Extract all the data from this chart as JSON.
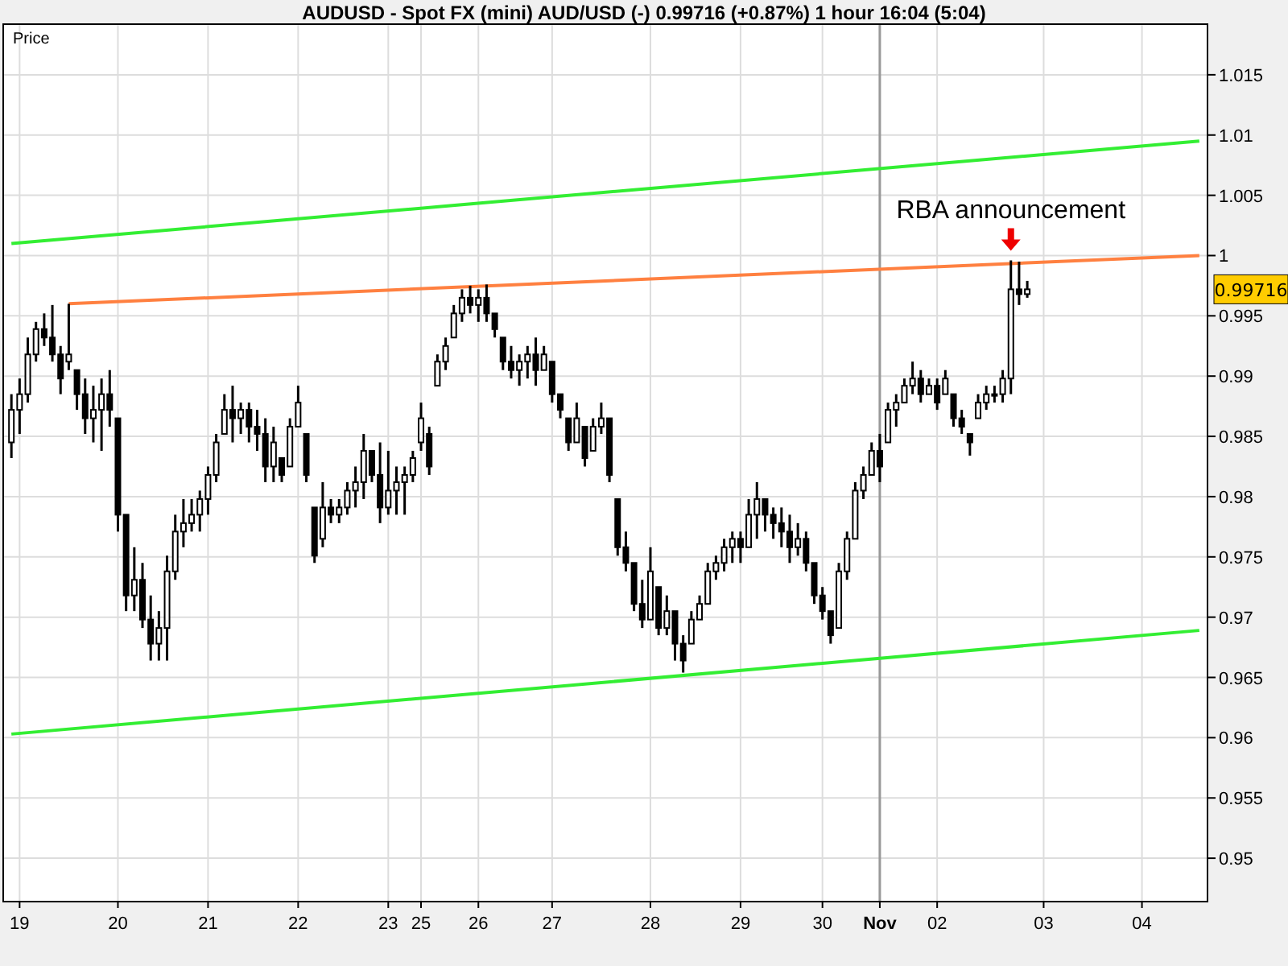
{
  "chart_data": {
    "type": "candlestick",
    "title": "AUDUSD - Spot FX (mini) AUD/USD (-)    0.99716 (+0.87%)    1 hour  16:04 (5:04)",
    "ylabel": "Price",
    "categories": [
      null,
      "19",
      null,
      null,
      null,
      null,
      null,
      null,
      null,
      null,
      null,
      null,
      null,
      "20",
      null,
      null,
      null,
      null,
      null,
      null,
      null,
      null,
      null,
      null,
      "21",
      null,
      null,
      null,
      null,
      null,
      null,
      null,
      null,
      null,
      null,
      "22",
      null,
      null,
      null,
      null,
      null,
      null,
      null,
      null,
      null,
      null,
      "23",
      null,
      null,
      null,
      "25",
      null,
      null,
      null,
      null,
      null,
      null,
      "26",
      null,
      null,
      null,
      null,
      null,
      null,
      null,
      null,
      "27",
      null,
      null,
      null,
      null,
      null,
      null,
      null,
      null,
      null,
      null,
      null,
      "28",
      null,
      null,
      null,
      null,
      null,
      null,
      null,
      null,
      null,
      null,
      "29",
      null,
      null,
      null,
      null,
      null,
      null,
      null,
      null,
      null,
      "30",
      null,
      null,
      null,
      null,
      null,
      null,
      "Nov",
      null,
      null,
      null,
      null,
      null,
      null,
      "02",
      null,
      null,
      null,
      null,
      null,
      null,
      null,
      null,
      null,
      null,
      null,
      null,
      "03",
      null,
      null,
      null,
      null,
      null,
      null,
      null,
      null,
      null,
      null,
      null,
      "04",
      null,
      null,
      null,
      null,
      null,
      null,
      null
    ],
    "ohlc": [
      [
        0.9845,
        0.9885,
        0.9832,
        0.9872
      ],
      [
        0.9872,
        0.9898,
        0.9852,
        0.9885
      ],
      [
        0.9885,
        0.9932,
        0.9878,
        0.9918
      ],
      [
        0.9918,
        0.9945,
        0.9912,
        0.9939
      ],
      [
        0.9939,
        0.9952,
        0.9925,
        0.9932
      ],
      [
        0.9932,
        0.9959,
        0.9912,
        0.9918
      ],
      [
        0.9918,
        0.9925,
        0.9885,
        0.9898
      ],
      [
        0.9912,
        0.996,
        0.9905,
        0.9918
      ],
      [
        0.9905,
        0.9905,
        0.9872,
        0.9885
      ],
      [
        0.9885,
        0.9898,
        0.9852,
        0.9865
      ],
      [
        0.9865,
        0.9892,
        0.9845,
        0.9872
      ],
      [
        0.9872,
        0.9898,
        0.9838,
        0.9885
      ],
      [
        0.9885,
        0.9905,
        0.9858,
        0.9872
      ],
      [
        0.9865,
        0.9865,
        0.9771,
        0.9785
      ],
      [
        0.9785,
        0.9785,
        0.9705,
        0.9718
      ],
      [
        0.9718,
        0.9758,
        0.9705,
        0.9731
      ],
      [
        0.9731,
        0.9745,
        0.9691,
        0.9698
      ],
      [
        0.9698,
        0.9718,
        0.9664,
        0.9678
      ],
      [
        0.9678,
        0.9705,
        0.9664,
        0.9691
      ],
      [
        0.9691,
        0.9751,
        0.9664,
        0.9738
      ],
      [
        0.9738,
        0.9785,
        0.9731,
        0.9771
      ],
      [
        0.9771,
        0.9798,
        0.9758,
        0.9778
      ],
      [
        0.9778,
        0.9798,
        0.9771,
        0.9785
      ],
      [
        0.9785,
        0.9805,
        0.9771,
        0.9798
      ],
      [
        0.9798,
        0.9825,
        0.9785,
        0.9818
      ],
      [
        0.9818,
        0.9852,
        0.9812,
        0.9845
      ],
      [
        0.9852,
        0.9885,
        0.9852,
        0.9872
      ],
      [
        0.9872,
        0.9892,
        0.9845,
        0.9865
      ],
      [
        0.9865,
        0.9878,
        0.9852,
        0.9872
      ],
      [
        0.9872,
        0.9878,
        0.9845,
        0.9858
      ],
      [
        0.9858,
        0.9872,
        0.9838,
        0.9852
      ],
      [
        0.9852,
        0.9865,
        0.9812,
        0.9825
      ],
      [
        0.9825,
        0.9858,
        0.9812,
        0.9845
      ],
      [
        0.9832,
        0.9832,
        0.9812,
        0.9818
      ],
      [
        0.9825,
        0.9865,
        0.9825,
        0.9858
      ],
      [
        0.9858,
        0.9892,
        0.9858,
        0.9878
      ],
      [
        0.9852,
        0.9852,
        0.9812,
        0.9818
      ],
      [
        0.9791,
        0.9791,
        0.9745,
        0.9751
      ],
      [
        0.9765,
        0.9812,
        0.9758,
        0.9791
      ],
      [
        0.9791,
        0.9798,
        0.9778,
        0.9785
      ],
      [
        0.9785,
        0.9798,
        0.9778,
        0.9791
      ],
      [
        0.9791,
        0.9812,
        0.9785,
        0.9805
      ],
      [
        0.9805,
        0.9825,
        0.9791,
        0.9812
      ],
      [
        0.9812,
        0.9852,
        0.9798,
        0.9838
      ],
      [
        0.9838,
        0.9838,
        0.9812,
        0.9818
      ],
      [
        0.9818,
        0.9845,
        0.9778,
        0.9791
      ],
      [
        0.9791,
        0.9838,
        0.9785,
        0.9805
      ],
      [
        0.9805,
        0.9825,
        0.9785,
        0.9812
      ],
      [
        0.9812,
        0.9825,
        0.9785,
        0.9818
      ],
      [
        0.9818,
        0.9838,
        0.9812,
        0.9832
      ],
      [
        0.9845,
        0.9878,
        0.9838,
        0.9865
      ],
      [
        0.9852,
        0.9858,
        0.9818,
        0.9825
      ],
      [
        0.9892,
        0.9918,
        0.9892,
        0.9912
      ],
      [
        0.9912,
        0.9932,
        0.9905,
        0.9925
      ],
      [
        0.9932,
        0.9959,
        0.9932,
        0.9952
      ],
      [
        0.9952,
        0.9972,
        0.9945,
        0.9965
      ],
      [
        0.9965,
        0.9975,
        0.9952,
        0.9959
      ],
      [
        0.9959,
        0.9972,
        0.9945,
        0.9965
      ],
      [
        0.9965,
        0.9976,
        0.9945,
        0.9952
      ],
      [
        0.9952,
        0.9952,
        0.9932,
        0.9939
      ],
      [
        0.9932,
        0.9932,
        0.9905,
        0.9912
      ],
      [
        0.9912,
        0.9925,
        0.9898,
        0.9905
      ],
      [
        0.9905,
        0.9918,
        0.9892,
        0.9912
      ],
      [
        0.9912,
        0.9925,
        0.9898,
        0.9918
      ],
      [
        0.9918,
        0.9932,
        0.9892,
        0.9905
      ],
      [
        0.9905,
        0.9925,
        0.9905,
        0.9918
      ],
      [
        0.9912,
        0.9912,
        0.9878,
        0.9885
      ],
      [
        0.9885,
        0.9885,
        0.9865,
        0.9872
      ],
      [
        0.9865,
        0.9865,
        0.9838,
        0.9845
      ],
      [
        0.9845,
        0.9878,
        0.9845,
        0.9865
      ],
      [
        0.9858,
        0.9858,
        0.9825,
        0.9832
      ],
      [
        0.9838,
        0.9865,
        0.9838,
        0.9858
      ],
      [
        0.9858,
        0.9878,
        0.9852,
        0.9865
      ],
      [
        0.9865,
        0.9865,
        0.9812,
        0.9818
      ],
      [
        0.9798,
        0.9798,
        0.9751,
        0.9758
      ],
      [
        0.9758,
        0.9771,
        0.9738,
        0.9745
      ],
      [
        0.9745,
        0.9745,
        0.9705,
        0.9711
      ],
      [
        0.9711,
        0.9731,
        0.9691,
        0.9698
      ],
      [
        0.9698,
        0.9758,
        0.9698,
        0.9738
      ],
      [
        0.9725,
        0.9725,
        0.9685,
        0.9691
      ],
      [
        0.9691,
        0.9718,
        0.9685,
        0.9705
      ],
      [
        0.9705,
        0.9705,
        0.9664,
        0.9678
      ],
      [
        0.9678,
        0.9685,
        0.9654,
        0.9664
      ],
      [
        0.9678,
        0.9705,
        0.9678,
        0.9698
      ],
      [
        0.9698,
        0.9718,
        0.9698,
        0.9711
      ],
      [
        0.9711,
        0.9745,
        0.9711,
        0.9738
      ],
      [
        0.9738,
        0.9751,
        0.9731,
        0.9745
      ],
      [
        0.9745,
        0.9765,
        0.9738,
        0.9758
      ],
      [
        0.9758,
        0.9771,
        0.9745,
        0.9765
      ],
      [
        0.9765,
        0.9771,
        0.9745,
        0.9758
      ],
      [
        0.9758,
        0.9798,
        0.9758,
        0.9785
      ],
      [
        0.9785,
        0.9812,
        0.9765,
        0.9798
      ],
      [
        0.9798,
        0.9798,
        0.9771,
        0.9785
      ],
      [
        0.9785,
        0.9791,
        0.9765,
        0.9778
      ],
      [
        0.9778,
        0.9791,
        0.9758,
        0.9771
      ],
      [
        0.9771,
        0.9785,
        0.9745,
        0.9758
      ],
      [
        0.9758,
        0.9778,
        0.9751,
        0.9765
      ],
      [
        0.9765,
        0.9771,
        0.9738,
        0.9745
      ],
      [
        0.9745,
        0.9745,
        0.9711,
        0.9718
      ],
      [
        0.9718,
        0.9725,
        0.9698,
        0.9705
      ],
      [
        0.9705,
        0.9705,
        0.9678,
        0.9685
      ],
      [
        0.9691,
        0.9745,
        0.9691,
        0.9738
      ],
      [
        0.9738,
        0.9771,
        0.9731,
        0.9765
      ],
      [
        0.9765,
        0.9812,
        0.9765,
        0.9805
      ],
      [
        0.9805,
        0.9825,
        0.9798,
        0.9818
      ],
      [
        0.9818,
        0.9845,
        0.9818,
        0.9838
      ],
      [
        0.9838,
        0.9852,
        0.9812,
        0.9825
      ],
      [
        0.9845,
        0.9878,
        0.9845,
        0.9872
      ],
      [
        0.9872,
        0.9885,
        0.9858,
        0.9878
      ],
      [
        0.9878,
        0.9898,
        0.9878,
        0.9892
      ],
      [
        0.9892,
        0.9912,
        0.9885,
        0.9898
      ],
      [
        0.9898,
        0.9905,
        0.9878,
        0.9885
      ],
      [
        0.9885,
        0.9898,
        0.9885,
        0.9892
      ],
      [
        0.9892,
        0.9898,
        0.9872,
        0.9878
      ],
      [
        0.9885,
        0.9905,
        0.9885,
        0.9898
      ],
      [
        0.9885,
        0.9885,
        0.9858,
        0.9865
      ],
      [
        0.9865,
        0.9872,
        0.9852,
        0.9858
      ],
      [
        0.9852,
        0.9852,
        0.9834,
        0.9845
      ],
      [
        0.9865,
        0.9885,
        0.9865,
        0.9878
      ],
      [
        0.9878,
        0.9892,
        0.9872,
        0.9885
      ],
      [
        0.9885,
        0.9892,
        0.9878,
        0.9885
      ],
      [
        0.9885,
        0.9905,
        0.9878,
        0.9898
      ],
      [
        0.9898,
        0.9996,
        0.9885,
        0.9972
      ],
      [
        0.9972,
        0.9995,
        0.9959,
        0.9968
      ],
      [
        0.9968,
        0.9979,
        0.9965,
        0.9972
      ],
      null,
      null,
      null,
      null,
      null,
      null,
      null,
      null,
      null,
      null,
      null,
      null,
      null,
      null,
      null,
      null,
      null,
      null,
      null,
      null,
      null
    ],
    "color": "#000000",
    "series": [
      {
        "type": "line",
        "color": "#33ee33",
        "values": [
          1.001,
          null,
          null,
          null,
          null,
          null,
          null,
          null,
          null,
          null,
          null,
          null,
          null,
          null,
          null,
          null,
          null,
          null,
          null,
          null,
          null,
          null,
          null,
          null,
          null,
          null,
          null,
          null,
          null,
          null,
          null,
          null,
          null,
          null,
          null,
          null,
          null,
          null,
          null,
          null,
          null,
          null,
          null,
          null,
          null,
          null,
          null,
          null,
          null,
          null,
          null,
          null,
          null,
          null,
          null,
          null,
          null,
          null,
          null,
          null,
          null,
          null,
          null,
          null,
          null,
          null,
          null,
          null,
          null,
          null,
          null,
          null,
          null,
          null,
          null,
          null,
          null,
          null,
          null,
          null,
          null,
          null,
          null,
          null,
          null,
          null,
          null,
          null,
          null,
          null,
          null,
          null,
          null,
          null,
          null,
          null,
          null,
          null,
          null,
          null,
          null,
          null,
          null,
          null,
          null,
          null,
          null,
          null,
          null,
          null,
          null,
          null,
          null,
          null,
          null,
          null,
          null,
          null,
          null,
          null,
          null,
          null,
          null,
          null,
          null,
          null,
          null,
          null,
          null,
          null,
          null,
          null,
          null,
          null,
          null,
          null,
          null,
          null,
          null,
          null,
          null,
          null,
          null,
          null,
          null,
          1.0095
        ]
      },
      {
        "type": "line",
        "color": "#33ee33",
        "values": [
          0.9603,
          null,
          null,
          null,
          null,
          null,
          null,
          null,
          null,
          null,
          null,
          null,
          null,
          null,
          null,
          null,
          null,
          null,
          null,
          null,
          null,
          null,
          null,
          null,
          null,
          null,
          null,
          null,
          null,
          null,
          null,
          null,
          null,
          null,
          null,
          null,
          null,
          null,
          null,
          null,
          null,
          null,
          null,
          null,
          null,
          null,
          null,
          null,
          null,
          null,
          null,
          null,
          null,
          null,
          null,
          null,
          null,
          null,
          null,
          null,
          null,
          null,
          null,
          null,
          null,
          null,
          null,
          null,
          null,
          null,
          null,
          null,
          null,
          null,
          null,
          null,
          null,
          null,
          null,
          null,
          null,
          null,
          null,
          null,
          null,
          null,
          null,
          null,
          null,
          null,
          null,
          null,
          null,
          null,
          null,
          null,
          null,
          null,
          null,
          null,
          null,
          null,
          null,
          null,
          null,
          null,
          null,
          null,
          null,
          null,
          null,
          null,
          null,
          null,
          null,
          null,
          null,
          null,
          null,
          null,
          null,
          null,
          null,
          null,
          null,
          null,
          null,
          null,
          null,
          null,
          null,
          null,
          null,
          null,
          null,
          null,
          null,
          null,
          null,
          null,
          null,
          null,
          null,
          null,
          null,
          0.9689
        ]
      },
      {
        "type": "line",
        "color": "#ff8040",
        "values": [
          null,
          null,
          null,
          null,
          null,
          null,
          null,
          0.996,
          null,
          null,
          null,
          null,
          null,
          null,
          null,
          null,
          null,
          null,
          null,
          null,
          null,
          null,
          null,
          null,
          null,
          null,
          null,
          null,
          null,
          null,
          null,
          null,
          null,
          null,
          null,
          null,
          null,
          null,
          null,
          null,
          null,
          null,
          null,
          null,
          null,
          null,
          null,
          null,
          null,
          null,
          null,
          null,
          null,
          null,
          null,
          null,
          null,
          null,
          null,
          null,
          null,
          null,
          null,
          null,
          null,
          null,
          null,
          null,
          null,
          null,
          null,
          null,
          null,
          null,
          null,
          null,
          null,
          null,
          null,
          null,
          null,
          null,
          null,
          null,
          null,
          null,
          null,
          null,
          null,
          null,
          null,
          null,
          null,
          null,
          null,
          null,
          null,
          null,
          null,
          null,
          null,
          null,
          null,
          null,
          null,
          null,
          null,
          null,
          null,
          null,
          null,
          null,
          null,
          null,
          null,
          null,
          null,
          null,
          null,
          null,
          null,
          null,
          null,
          null,
          null,
          null,
          null,
          null,
          null,
          null,
          null,
          null,
          null,
          null,
          null,
          null,
          null,
          null,
          null,
          null,
          null,
          null,
          null,
          null,
          null,
          1.0
        ]
      }
    ],
    "ylim": [
      0.9464,
      1.0192
    ],
    "yticks": [
      0.95,
      0.955,
      0.96,
      0.965,
      0.97,
      0.975,
      0.98,
      0.985,
      0.99,
      0.995,
      1,
      1.005,
      1.01,
      1.015
    ],
    "grid": true,
    "ref_lines": [
      {
        "axis": "x",
        "value": "Nov",
        "color": "#999999"
      }
    ],
    "annotations": [
      "RBA announcement",
      "0.99716"
    ]
  }
}
